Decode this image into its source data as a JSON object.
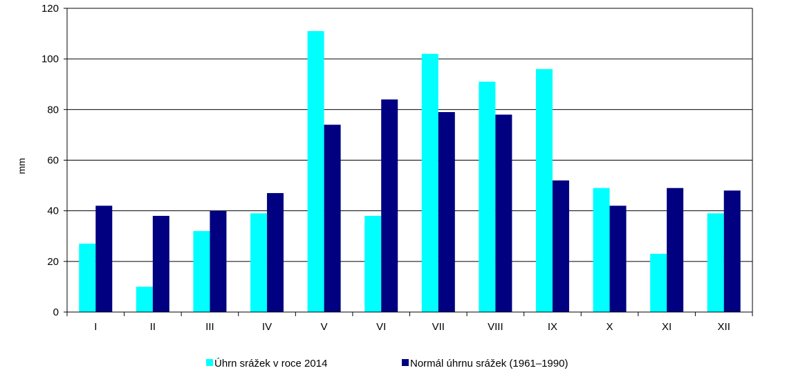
{
  "chart_data": {
    "type": "bar",
    "categories": [
      "I",
      "II",
      "III",
      "IV",
      "V",
      "VI",
      "VII",
      "VIII",
      "IX",
      "X",
      "XI",
      "XII"
    ],
    "series": [
      {
        "name": "Úhrn srážek v roce 2014",
        "color": "#00FFFF",
        "values": [
          27,
          10,
          32,
          39,
          111,
          38,
          102,
          91,
          96,
          49,
          23,
          39
        ]
      },
      {
        "name": "Normál úhrnu srážek (1961–1990)",
        "color": "#000080",
        "values": [
          42,
          38,
          40,
          47,
          74,
          84,
          79,
          78,
          52,
          42,
          49,
          48
        ]
      }
    ],
    "title": "",
    "xlabel": "",
    "ylabel": "mm",
    "ylim": [
      0,
      120
    ],
    "yticks": [
      "0",
      "20",
      "40",
      "60",
      "80",
      "100",
      "120"
    ],
    "grid": true,
    "legend_position": "bottom"
  }
}
